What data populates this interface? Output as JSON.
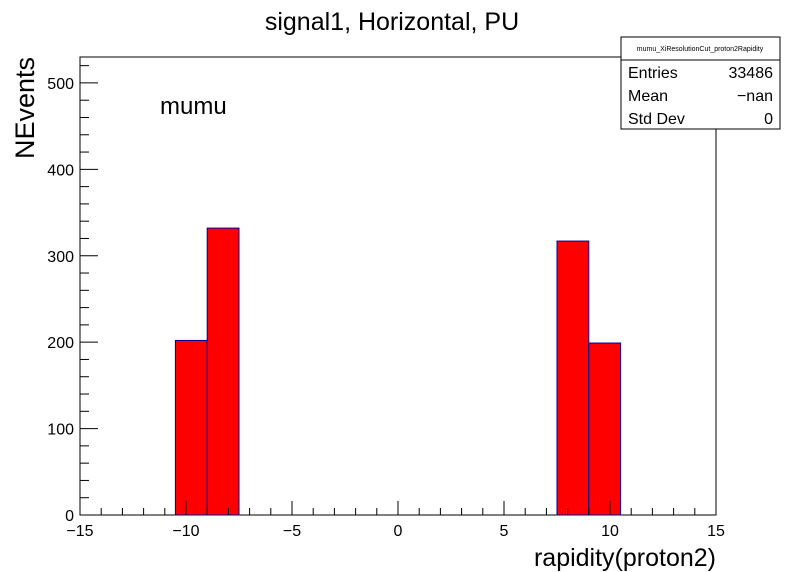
{
  "chart_data": {
    "type": "bar",
    "title": "signal1, Horizontal, PU",
    "xlabel": "rapidity(proton2)",
    "ylabel": "NEvents",
    "annotation": "mumu",
    "xlim": [
      -15,
      15
    ],
    "ylim": [
      0,
      530
    ],
    "x_major_ticks": [
      -15,
      -10,
      -5,
      0,
      5,
      10,
      15
    ],
    "x_tick_labels": [
      "−15",
      "−10",
      "−5",
      "0",
      "5",
      "10",
      "15"
    ],
    "y_major_ticks": [
      0,
      100,
      200,
      300,
      400,
      500
    ],
    "y_tick_labels": [
      "0",
      "100",
      "200",
      "300",
      "400",
      "500"
    ],
    "grid": false,
    "bin_width": 1.5,
    "bins": [
      {
        "x_low": -10.5,
        "x_high": -9.0,
        "value": 202
      },
      {
        "x_low": -9.0,
        "x_high": -7.5,
        "value": 332
      },
      {
        "x_low": 7.5,
        "x_high": 9.0,
        "value": 317
      },
      {
        "x_low": 9.0,
        "x_high": 10.5,
        "value": 199
      }
    ],
    "fill_color": "#ff0000",
    "line_color": "#000099"
  },
  "stats_box": {
    "title": "mumu_XiResolutionCut_proton2Rapidity",
    "position": "top-right",
    "rows": [
      {
        "label": "Entries",
        "value": "33486"
      },
      {
        "label": "Mean",
        "value": "−nan"
      },
      {
        "label": "Std Dev",
        "value": "0"
      }
    ]
  }
}
